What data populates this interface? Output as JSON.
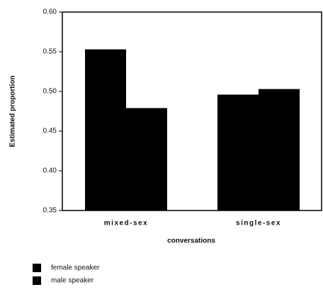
{
  "chart_data": {
    "type": "bar",
    "categories": [
      "mixed-sex",
      "single-sex"
    ],
    "series": [
      {
        "name": "female speaker",
        "color": "#000000",
        "values": [
          0.553,
          0.496
        ]
      },
      {
        "name": "male speaker",
        "color": "#000000",
        "values": [
          0.479,
          0.503
        ]
      }
    ],
    "xlabel": "conversations",
    "ylabel": "Estimated proportion",
    "ylim": [
      0.35,
      0.6
    ],
    "yticks": [
      0.35,
      {
        "value": 0.4,
        "label": "0.40"
      },
      0.45,
      {
        "value": 0.5,
        "label": "0.50"
      },
      0.55,
      {
        "value": 0.6,
        "label": "0.60"
      }
    ],
    "legend": "bottom-left"
  }
}
